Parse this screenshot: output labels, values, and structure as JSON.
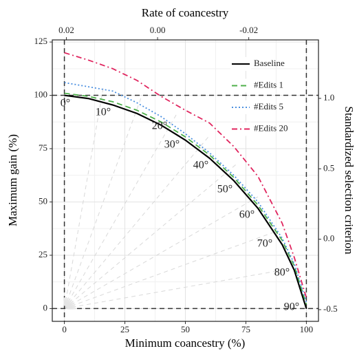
{
  "chart_data": {
    "type": "line",
    "xlabel": "Minimum coancestry (%)",
    "ylabel": "Maximum gain (%)",
    "x2label": "Rate of coancestry",
    "y2label": "Standardized selection criterion",
    "x": [
      0,
      10,
      20,
      30,
      40,
      50,
      60,
      70,
      80,
      90,
      95,
      100
    ],
    "series": [
      {
        "name": "Baseline",
        "color": "#000000",
        "dash": "solid",
        "values": [
          100,
          98.5,
          95.5,
          91.5,
          86,
          79,
          70.5,
          60,
          47,
          30,
          18,
          0
        ]
      },
      {
        "name": "#Edits 1",
        "color": "#4daf4a",
        "dash": "dashed",
        "values": [
          101,
          99.5,
          97,
          93,
          87.5,
          80.5,
          72,
          61.5,
          48.5,
          32,
          20,
          2
        ]
      },
      {
        "name": "#Edits 5",
        "color": "#4a8fe0",
        "dash": "dotted",
        "values": [
          106,
          104,
          102,
          96.5,
          90,
          82,
          73,
          62.5,
          50,
          33,
          21,
          3
        ]
      },
      {
        "name": "#Edits 20",
        "color": "#e0245e",
        "dash": "dashdot",
        "values": [
          120,
          116.5,
          112.5,
          107,
          99.5,
          93,
          87,
          76,
          62,
          40,
          24,
          5
        ]
      }
    ],
    "xlim": [
      -5,
      105
    ],
    "xticks": [
      0,
      25,
      50,
      75,
      100
    ],
    "ylim": [
      -6,
      126
    ],
    "yticks": [
      0,
      25,
      50,
      75,
      100,
      125
    ],
    "x2lim": [
      0.0231,
      -0.0353
    ],
    "x2ticks": [
      0.02,
      {
        "value": 0,
        "label": "0.00"
      },
      -0.02
    ],
    "y2lim": [
      -0.583,
      1.415
    ],
    "y2ticks": [
      {
        "value": 1,
        "label": "1.0"
      },
      0.5,
      {
        "value": 0,
        "label": "0.0"
      },
      -0.5
    ],
    "hlines": [
      0,
      100
    ],
    "vlines": [
      0,
      100
    ],
    "annotations": [
      "0°",
      "10°",
      "20°",
      "30°",
      "40°",
      "50°",
      "60°",
      "70°",
      "80°",
      "90°"
    ],
    "grid": true,
    "legend": "top-right"
  }
}
